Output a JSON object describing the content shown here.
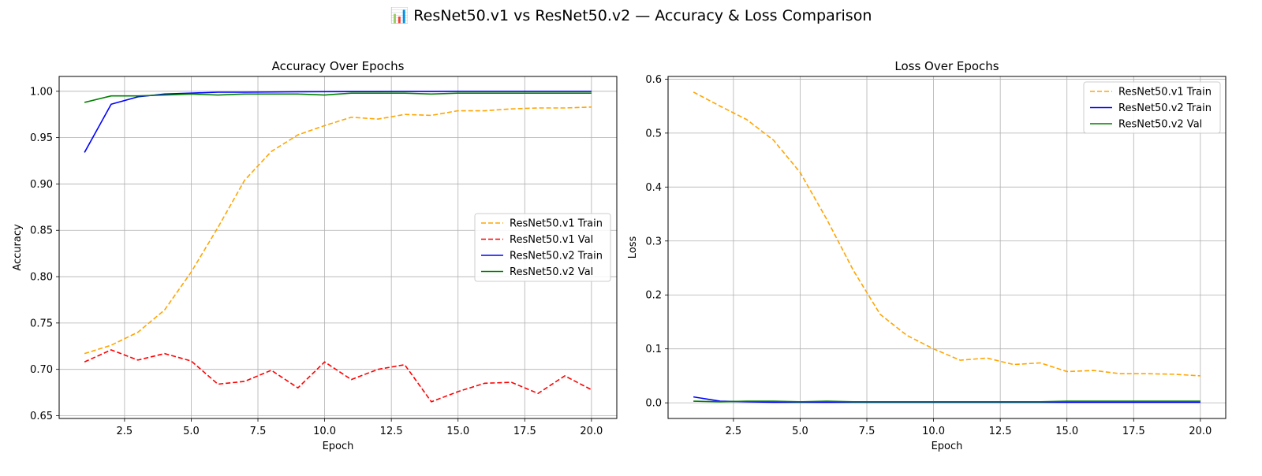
{
  "figure": {
    "suptitle": "📊 ResNet50.v1 vs ResNet50.v2 — Accuracy & Loss Comparison"
  },
  "chart_data": [
    {
      "type": "line",
      "title": "Accuracy Over Epochs",
      "xlabel": "Epoch",
      "ylabel": "Accuracy",
      "xlim": [
        0.05,
        20.95
      ],
      "ylim": [
        0.647,
        1.016
      ],
      "xticks": [
        2.5,
        5.0,
        7.5,
        10.0,
        12.5,
        15.0,
        17.5,
        20.0
      ],
      "xtick_labels": [
        "2.5",
        "5.0",
        "7.5",
        "10.0",
        "12.5",
        "15.0",
        "17.5",
        "20.0"
      ],
      "yticks": [
        0.65,
        0.7,
        0.75,
        0.8,
        0.85,
        0.9,
        0.95,
        1.0
      ],
      "ytick_labels": [
        "0.65",
        "0.70",
        "0.75",
        "0.80",
        "0.85",
        "0.90",
        "0.95",
        "1.00"
      ],
      "grid": true,
      "legend_position": "center-right",
      "x": [
        1,
        2,
        3,
        4,
        5,
        6,
        7,
        8,
        9,
        10,
        11,
        12,
        13,
        14,
        15,
        16,
        17,
        18,
        19,
        20
      ],
      "series": [
        {
          "name": "ResNet50.v1 Train",
          "color": "#ffa500",
          "dash": "dashed",
          "values": [
            0.717,
            0.726,
            0.74,
            0.764,
            0.805,
            0.853,
            0.904,
            0.935,
            0.953,
            0.963,
            0.972,
            0.97,
            0.975,
            0.974,
            0.979,
            0.979,
            0.981,
            0.982,
            0.982,
            0.983
          ]
        },
        {
          "name": "ResNet50.v1 Val",
          "color": "#ff0000",
          "dash": "dashed",
          "values": [
            0.708,
            0.721,
            0.71,
            0.717,
            0.709,
            0.684,
            0.687,
            0.699,
            0.68,
            0.708,
            0.689,
            0.7,
            0.705,
            0.665,
            0.676,
            0.685,
            0.686,
            0.674,
            0.693,
            0.678
          ]
        },
        {
          "name": "ResNet50.v2 Train",
          "color": "#0000ff",
          "dash": "solid",
          "values": [
            0.934,
            0.986,
            0.994,
            0.997,
            0.998,
            0.999,
            0.999,
            0.9992,
            0.9995,
            0.9996,
            0.9997,
            0.9997,
            0.9998,
            0.9998,
            0.9999,
            0.9999,
            0.9999,
            0.9999,
            0.9999,
            0.9999
          ]
        },
        {
          "name": "ResNet50.v2 Val",
          "color": "#008000",
          "dash": "solid",
          "values": [
            0.988,
            0.995,
            0.995,
            0.996,
            0.997,
            0.996,
            0.997,
            0.997,
            0.997,
            0.996,
            0.998,
            0.998,
            0.998,
            0.997,
            0.998,
            0.998,
            0.998,
            0.998,
            0.998,
            0.998
          ]
        }
      ]
    },
    {
      "type": "line",
      "title": "Loss Over Epochs",
      "xlabel": "Epoch",
      "ylabel": "Loss",
      "xlim": [
        0.05,
        20.95
      ],
      "ylim": [
        -0.029,
        0.605
      ],
      "xticks": [
        2.5,
        5.0,
        7.5,
        10.0,
        12.5,
        15.0,
        17.5,
        20.0
      ],
      "xtick_labels": [
        "2.5",
        "5.0",
        "7.5",
        "10.0",
        "12.5",
        "15.0",
        "17.5",
        "20.0"
      ],
      "yticks": [
        0.0,
        0.1,
        0.2,
        0.3,
        0.4,
        0.5,
        0.6
      ],
      "ytick_labels": [
        "0.0",
        "0.1",
        "0.2",
        "0.3",
        "0.4",
        "0.5",
        "0.6"
      ],
      "grid": true,
      "legend_position": "upper-right",
      "x": [
        1,
        2,
        3,
        4,
        5,
        6,
        7,
        8,
        9,
        10,
        11,
        12,
        13,
        14,
        15,
        16,
        17,
        18,
        19,
        20
      ],
      "series": [
        {
          "name": "ResNet50.v1 Train",
          "color": "#ffa500",
          "dash": "dashed",
          "values": [
            0.576,
            0.55,
            0.525,
            0.487,
            0.427,
            0.34,
            0.245,
            0.164,
            0.125,
            0.1,
            0.079,
            0.083,
            0.071,
            0.074,
            0.058,
            0.06,
            0.054,
            0.054,
            0.053,
            0.05
          ]
        },
        {
          "name": "ResNet50.v2 Train",
          "color": "#0000ff",
          "dash": "solid",
          "values": [
            0.011,
            0.003,
            0.002,
            0.001,
            0.001,
            0.001,
            0.001,
            0.001,
            0.001,
            0.001,
            0.001,
            0.001,
            0.001,
            0.001,
            0.001,
            0.001,
            0.001,
            0.001,
            0.001,
            0.001
          ]
        },
        {
          "name": "ResNet50.v2 Val",
          "color": "#008000",
          "dash": "solid",
          "values": [
            0.003,
            0.002,
            0.003,
            0.003,
            0.002,
            0.003,
            0.002,
            0.002,
            0.002,
            0.002,
            0.002,
            0.002,
            0.002,
            0.002,
            0.003,
            0.003,
            0.003,
            0.003,
            0.003,
            0.003
          ]
        }
      ]
    }
  ]
}
